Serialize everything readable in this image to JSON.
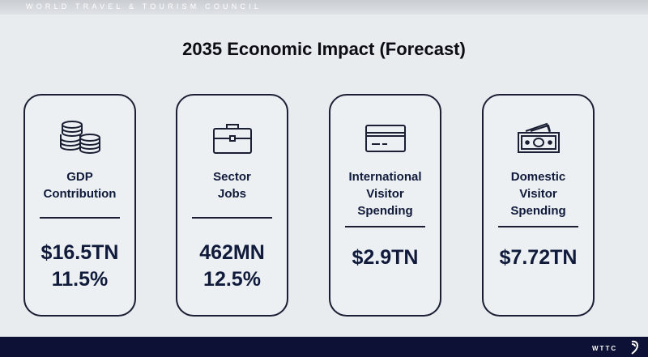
{
  "header": {
    "org_name": "WORLD TRAVEL & TOURISM COUNCIL"
  },
  "title": "2035 Economic Impact (Forecast)",
  "cards": [
    {
      "icon": "coins-stack-icon",
      "label_lines": [
        "GDP",
        "Contribution"
      ],
      "value_lines": [
        "$16.5TN",
        "11.5%"
      ]
    },
    {
      "icon": "briefcase-icon",
      "label_lines": [
        "Sector",
        "Jobs"
      ],
      "value_lines": [
        "462MN",
        "12.5%"
      ]
    },
    {
      "icon": "credit-card-icon",
      "label_lines": [
        "International",
        "Visitor",
        "Spending"
      ],
      "value_lines": [
        "$2.9TN"
      ]
    },
    {
      "icon": "banknotes-icon",
      "label_lines": [
        "Domestic",
        "Visitor",
        "Spending"
      ],
      "value_lines": [
        "$7.72TN"
      ]
    }
  ],
  "footer": {
    "brand": "WTTC"
  },
  "colors": {
    "background": "#e9ecef",
    "footer": "#0d1135",
    "text": "#101a3a"
  }
}
